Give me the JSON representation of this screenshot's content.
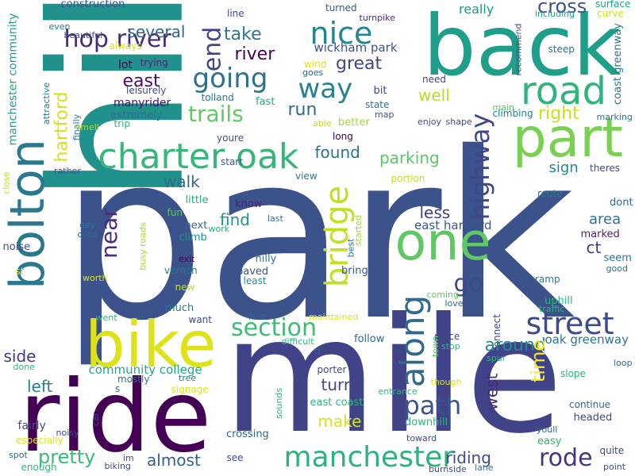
{
  "words": [
    {
      "text": "park",
      "color": "#3b528b"
    },
    {
      "text": "mile",
      "color": "#404387"
    },
    {
      "text": "hill",
      "color": "#21918c"
    },
    {
      "text": "back",
      "color": "#1f9e89"
    },
    {
      "text": "ride",
      "color": "#440154"
    },
    {
      "text": "bike",
      "color": "#dde318"
    },
    {
      "text": "one",
      "color": "#5ec962"
    },
    {
      "text": "part",
      "color": "#7ad151"
    },
    {
      "text": "bolton",
      "color": "#2a788e"
    },
    {
      "text": "road",
      "color": "#2fb47c"
    },
    {
      "text": "along",
      "color": "#31688e"
    },
    {
      "text": "charter oak",
      "color": "#35b779"
    },
    {
      "text": "bridge",
      "color": "#c2df23"
    },
    {
      "text": "manchester",
      "color": "#2db27d"
    },
    {
      "text": "going",
      "color": "#2c728e"
    },
    {
      "text": "nice",
      "color": "#25848e"
    },
    {
      "text": "way",
      "color": "#26828e"
    },
    {
      "text": "street",
      "color": "#3e4a89"
    },
    {
      "text": "section",
      "color": "#3dbc74"
    },
    {
      "text": "highway",
      "color": "#3f4788"
    },
    {
      "text": "path",
      "color": "#3b528b"
    },
    {
      "text": "end",
      "color": "#414487"
    },
    {
      "text": "hop river",
      "color": "#482878"
    },
    {
      "text": "go",
      "color": "#3e4989"
    },
    {
      "text": "rode",
      "color": "#46337e"
    },
    {
      "text": "near",
      "color": "#472d7b"
    },
    {
      "text": "trails",
      "color": "#5ec962"
    },
    {
      "text": "around",
      "color": "#238a8d"
    },
    {
      "text": "pretty",
      "color": "#3aba76"
    },
    {
      "text": "time",
      "color": "#fde725"
    },
    {
      "text": "take",
      "color": "#2a768e"
    },
    {
      "text": "great",
      "color": "#3f4788"
    },
    {
      "text": "east",
      "color": "#471063"
    },
    {
      "text": "river",
      "color": "#440154"
    },
    {
      "text": "several",
      "color": "#33638d"
    },
    {
      "text": "walk",
      "color": "#31688e"
    },
    {
      "text": "run",
      "color": "#30698e"
    },
    {
      "text": "found",
      "color": "#2d708e"
    },
    {
      "text": "parking",
      "color": "#58c765"
    },
    {
      "text": "well",
      "color": "#b5de2b"
    },
    {
      "text": "right",
      "color": "#c8e020"
    },
    {
      "text": "cross",
      "color": "#3a548c"
    },
    {
      "text": "hartford",
      "color": "#d2e21b"
    },
    {
      "text": "almost",
      "color": "#35608d"
    },
    {
      "text": "riding",
      "color": "#3e4a89"
    },
    {
      "text": "turn",
      "color": "#3f4889"
    },
    {
      "text": "make",
      "color": "#d8e219"
    },
    {
      "text": "west",
      "color": "#472a7a"
    },
    {
      "text": "left",
      "color": "#277f8e"
    },
    {
      "text": "side",
      "color": "#443983"
    },
    {
      "text": "less",
      "color": "#424086"
    },
    {
      "text": "find",
      "color": "#21918c"
    },
    {
      "text": "area",
      "color": "#2c718e"
    },
    {
      "text": "ct",
      "color": "#453581"
    },
    {
      "text": "sign",
      "color": "#24868e"
    },
    {
      "text": "really",
      "color": "#1f978b"
    },
    {
      "text": "east hartford",
      "color": "#38588c"
    },
    {
      "text": "community college",
      "color": "#22a785"
    },
    {
      "text": "oak greenway",
      "color": "#2a768e"
    },
    {
      "text": "wickham park",
      "color": "#3b528b"
    },
    {
      "text": "manchester community",
      "color": "#1fa088"
    },
    {
      "text": "coast greenway",
      "color": "#2a778e"
    },
    {
      "text": "construction",
      "color": "#3b528b"
    },
    {
      "text": "line",
      "color": "#3e4c8a"
    },
    {
      "text": "turned",
      "color": "#3b528b"
    },
    {
      "text": "turnpike",
      "color": "#472c7a"
    },
    {
      "text": "including",
      "color": "#1fa088"
    },
    {
      "text": "surface",
      "color": "#1fa188"
    },
    {
      "text": "curve",
      "color": "#d0e11c"
    },
    {
      "text": "even",
      "color": "#2a788e"
    },
    {
      "text": "beautiful",
      "color": "#3e4a89"
    },
    {
      "text": "always",
      "color": "#d8e219"
    },
    {
      "text": "lot",
      "color": "#440154"
    },
    {
      "text": "trying",
      "color": "#482677"
    },
    {
      "text": "manyrider",
      "color": "#471063"
    },
    {
      "text": "extremely",
      "color": "#2d708e"
    },
    {
      "text": "leisurely",
      "color": "#3e4a89"
    },
    {
      "text": "trip",
      "color": "#2fb47c"
    },
    {
      "text": "tolland",
      "color": "#2a778e"
    },
    {
      "text": "fast",
      "color": "#27ad81"
    },
    {
      "text": "wind",
      "color": "#dde318"
    },
    {
      "text": "goes",
      "color": "#31688e"
    },
    {
      "text": "bit",
      "color": "#3e4989"
    },
    {
      "text": "state",
      "color": "#2a788e"
    },
    {
      "text": "map",
      "color": "#39568c"
    },
    {
      "text": "need",
      "color": "#3e4a89"
    },
    {
      "text": "recommend",
      "color": "#3b528b"
    },
    {
      "text": "steep",
      "color": "#2c728e"
    },
    {
      "text": "main",
      "color": "#5ec962"
    },
    {
      "text": "climbing",
      "color": "#25838e"
    },
    {
      "text": "marking",
      "color": "#2d708e"
    },
    {
      "text": "enjoy",
      "color": "#3e4a89"
    },
    {
      "text": "shape",
      "color": "#3f4788"
    },
    {
      "text": "able",
      "color": "#c2df23"
    },
    {
      "text": "better",
      "color": "#9fda3a"
    },
    {
      "text": "long",
      "color": "#440154"
    },
    {
      "text": "attractive",
      "color": "#2a788e"
    },
    {
      "text": "finally",
      "color": "#2a788e"
    },
    {
      "text": "smell",
      "color": "#a8db34"
    },
    {
      "text": "youre",
      "color": "#3e4a89"
    },
    {
      "text": "start",
      "color": "#39568c"
    },
    {
      "text": "portion",
      "color": "#bddf26"
    },
    {
      "text": "theres",
      "color": "#3e4a89"
    },
    {
      "text": "rather",
      "color": "#38588c"
    },
    {
      "text": "close",
      "color": "#b5de2b"
    },
    {
      "text": "view",
      "color": "#2a788e"
    },
    {
      "text": "route",
      "color": "#2a788e"
    },
    {
      "text": "know",
      "color": "#482475"
    },
    {
      "text": "little",
      "color": "#26ad81"
    },
    {
      "text": "fun",
      "color": "#5ec962"
    },
    {
      "text": "last",
      "color": "#2a788e"
    },
    {
      "text": "started",
      "color": "#9fda3a"
    },
    {
      "text": "dont",
      "color": "#31688e"
    },
    {
      "text": "day",
      "color": "#2a788e"
    },
    {
      "text": "onto",
      "color": "#31688e"
    },
    {
      "text": "busy roads",
      "color": "#a0da39"
    },
    {
      "text": "next",
      "color": "#31688e"
    },
    {
      "text": "climb",
      "color": "#21918c"
    },
    {
      "text": "work",
      "color": "#22a884"
    },
    {
      "text": "best",
      "color": "#2a788e"
    },
    {
      "text": "marked",
      "color": "#481f70"
    },
    {
      "text": "noise",
      "color": "#3e4a89"
    },
    {
      "text": "exit",
      "color": "#440154"
    },
    {
      "text": "seem",
      "color": "#2a788e"
    },
    {
      "text": "good",
      "color": "#2a788e"
    },
    {
      "text": "st",
      "color": "#dde318"
    },
    {
      "text": "worth",
      "color": "#dde318"
    },
    {
      "text": "vernon",
      "color": "#2a788e"
    },
    {
      "text": "hilly",
      "color": "#2a788e"
    },
    {
      "text": "paved",
      "color": "#3b528b"
    },
    {
      "text": "least",
      "color": "#21918c"
    },
    {
      "text": "bring",
      "color": "#3b528b"
    },
    {
      "text": "new",
      "color": "#c8e020"
    },
    {
      "text": "ramp",
      "color": "#2a788e"
    },
    {
      "text": "coming",
      "color": "#5ec962"
    },
    {
      "text": "love",
      "color": "#31688e"
    },
    {
      "text": "uphill",
      "color": "#2fb47c"
    },
    {
      "text": "traffic",
      "color": "#2fb47c"
    },
    {
      "text": "much",
      "color": "#2a788e"
    },
    {
      "text": "went",
      "color": "#2fb47c"
    },
    {
      "text": "want",
      "color": "#3e4a89"
    },
    {
      "text": "first",
      "color": "#31688e"
    },
    {
      "text": "maintained",
      "color": "#dde318"
    },
    {
      "text": "connect",
      "color": "#3e4a89"
    },
    {
      "text": "difficult",
      "color": "#2fb47c"
    },
    {
      "text": "rt",
      "color": "#31688e"
    },
    {
      "text": "follow",
      "color": "#31688e"
    },
    {
      "text": "place",
      "color": "#3e4a89"
    },
    {
      "text": "stop",
      "color": "#2fb47c"
    },
    {
      "text": "spur",
      "color": "#2fb47c"
    },
    {
      "text": "done",
      "color": "#2fb47c"
    },
    {
      "text": "mostly",
      "color": "#2a788e"
    },
    {
      "text": "tree",
      "color": "#2a788e"
    },
    {
      "text": "porter",
      "color": "#3e4a89"
    },
    {
      "text": "town",
      "color": "#5ec962"
    },
    {
      "text": "though",
      "color": "#dde318"
    },
    {
      "text": "slope",
      "color": "#2fb47c"
    },
    {
      "text": "loop",
      "color": "#31688e"
    },
    {
      "text": "s",
      "color": "#31688e"
    },
    {
      "text": "signage",
      "color": "#dde318"
    },
    {
      "text": "entrance",
      "color": "#2fb47c"
    },
    {
      "text": "sounds",
      "color": "#2fb47c"
    },
    {
      "text": "east coast",
      "color": "#2fb47c"
    },
    {
      "text": "fairly",
      "color": "#3e4a89"
    },
    {
      "text": "continue",
      "color": "#31688e"
    },
    {
      "text": "headed",
      "color": "#3e4a89"
    },
    {
      "text": "downhill",
      "color": "#2fb47c"
    },
    {
      "text": "especially",
      "color": "#dde318"
    },
    {
      "text": "noisy",
      "color": "#3e4a89"
    },
    {
      "text": "car",
      "color": "#3e4a89"
    },
    {
      "text": "crossing",
      "color": "#31688e"
    },
    {
      "text": "see",
      "color": "#3e4a89"
    },
    {
      "text": "youll",
      "color": "#31688e"
    },
    {
      "text": "easy",
      "color": "#2fb47c"
    },
    {
      "text": "toward",
      "color": "#3e4a89"
    },
    {
      "text": "spot",
      "color": "#31688e"
    },
    {
      "text": "im",
      "color": "#3e4a89"
    },
    {
      "text": "biking",
      "color": "#3e4a89"
    },
    {
      "text": "enough",
      "color": "#2fb47c"
    },
    {
      "text": "burnside",
      "color": "#3e4a89"
    },
    {
      "text": "lane",
      "color": "#2a788e"
    },
    {
      "text": "quite",
      "color": "#3e4a89"
    },
    {
      "text": "point",
      "color": "#3e4a89"
    },
    {
      "text": "boring",
      "color": "#31688e"
    }
  ]
}
